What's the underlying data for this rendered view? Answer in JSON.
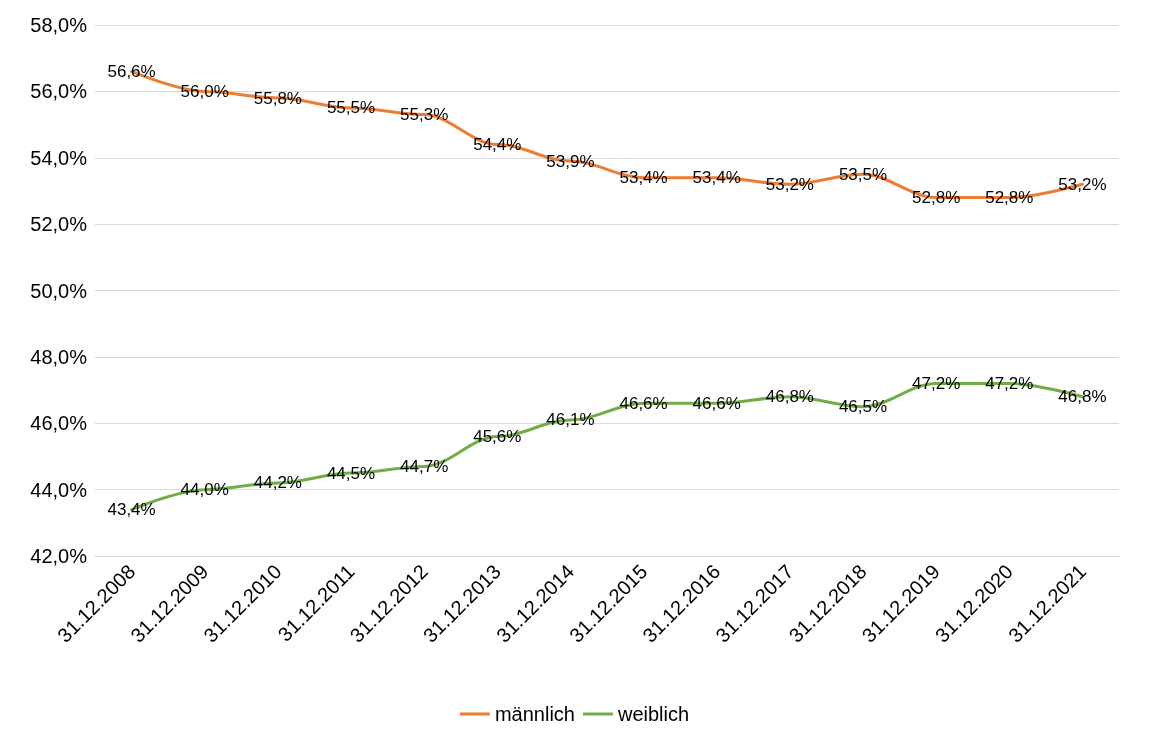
{
  "chart_data": {
    "type": "line",
    "categories": [
      "31.12.2008",
      "31.12.2009",
      "31.12.2010",
      "31.12.2011",
      "31.12.2012",
      "31.12.2013",
      "31.12.2014",
      "31.12.2015",
      "31.12.2016",
      "31.12.2017",
      "31.12.2018",
      "31.12.2019",
      "31.12.2020",
      "31.12.2021"
    ],
    "series": [
      {
        "name": "männlich",
        "color": "#ed7d31",
        "values": [
          56.6,
          56.0,
          55.8,
          55.5,
          55.3,
          54.4,
          53.9,
          53.4,
          53.4,
          53.2,
          53.5,
          52.8,
          52.8,
          53.2
        ],
        "value_labels": [
          "56,6%",
          "56,0%",
          "55,8%",
          "55,5%",
          "55,3%",
          "54,4%",
          "53,9%",
          "53,4%",
          "53,4%",
          "53,2%",
          "53,5%",
          "52,8%",
          "52,8%",
          "53,2%"
        ]
      },
      {
        "name": "weiblich",
        "color": "#70ad47",
        "values": [
          43.4,
          44.0,
          44.2,
          44.5,
          44.7,
          45.6,
          46.1,
          46.6,
          46.6,
          46.8,
          46.5,
          47.2,
          47.2,
          46.8
        ],
        "value_labels": [
          "43,4%",
          "44,0%",
          "44,2%",
          "44,5%",
          "44,7%",
          "45,6%",
          "46,1%",
          "46,6%",
          "46,6%",
          "46,8%",
          "46,5%",
          "47,2%",
          "47,2%",
          "46,8%"
        ]
      }
    ],
    "ylim": [
      42,
      58
    ],
    "yticks": [
      {
        "value": 42,
        "label": "42,0%"
      },
      {
        "value": 44,
        "label": "44,0%"
      },
      {
        "value": 46,
        "label": "46,0%"
      },
      {
        "value": 48,
        "label": "48,0%"
      },
      {
        "value": 50,
        "label": "50,0%"
      },
      {
        "value": 52,
        "label": "52,0%"
      },
      {
        "value": 54,
        "label": "54,0%"
      },
      {
        "value": 56,
        "label": "56,0%"
      },
      {
        "value": 58,
        "label": "58,0%"
      }
    ],
    "grid": "y",
    "legend": "bottom",
    "marker": "none",
    "line_style": "solid"
  }
}
